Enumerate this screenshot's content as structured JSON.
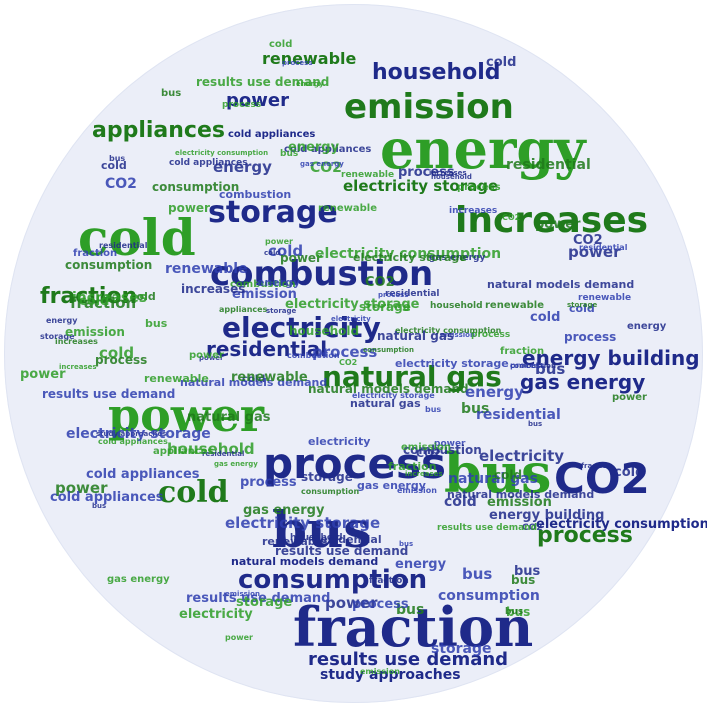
{
  "colors": {
    "green": "#2e9e27",
    "dark_green": "#1f7a1b",
    "navy": "#1f2a8a",
    "blue": "#2f3fb0",
    "background": "#ebeef8"
  },
  "words": [
    "energy",
    "emission",
    "household",
    "increases",
    "renewable",
    "residential",
    "process",
    "power",
    "storage",
    "combustion",
    "appliances",
    "cold",
    "natural gas",
    "bus",
    "fraction",
    "electricity",
    "CO2",
    "consumption",
    "energy building",
    "gas energy",
    "electricity storage",
    "cold appliances",
    "natural models demand",
    "results use demand",
    "study approaches",
    "electricity consumption",
    "process",
    "power",
    "cold",
    "bus",
    "fraction"
  ]
}
